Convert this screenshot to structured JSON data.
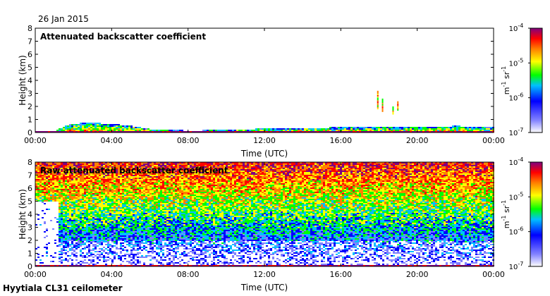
{
  "date_label": "26 Jan 2015",
  "footer_label": "Hyytiala CL31 ceilometer",
  "chart_data": [
    {
      "type": "heatmap",
      "title": "Attenuated backscatter coefficient",
      "xlabel": "Time (UTC)",
      "ylabel": "Height (km)",
      "x_ticks": [
        "00:00",
        "04:00",
        "08:00",
        "12:00",
        "16:00",
        "20:00",
        "00:00"
      ],
      "y_ticks": [
        "0",
        "1",
        "2",
        "3",
        "4",
        "5",
        "6",
        "7",
        "8"
      ],
      "xlim_hours": [
        0,
        24
      ],
      "ylim_km": [
        0,
        8
      ],
      "colorbar": {
        "scale": "log",
        "range": [
          1e-07,
          0.0001
        ],
        "tick_labels": [
          {
            "base": "10",
            "exp": "-4"
          },
          {
            "base": "10",
            "exp": "-5"
          },
          {
            "base": "10",
            "exp": "-6"
          },
          {
            "base": "10",
            "exp": "-7"
          }
        ],
        "unit": {
          "m": "m",
          "m_exp": "-1",
          "sr": "sr",
          "sr_exp": "-1"
        }
      },
      "features": {
        "boundary_layer_top_km": [
          [
            0,
            0.15
          ],
          [
            1,
            0.2
          ],
          [
            1.5,
            0.55
          ],
          [
            2,
            0.75
          ],
          [
            3,
            0.78
          ],
          [
            4,
            0.72
          ],
          [
            5,
            0.55
          ],
          [
            6,
            0.3
          ],
          [
            8,
            0.2
          ],
          [
            10,
            0.25
          ],
          [
            12,
            0.35
          ],
          [
            14,
            0.4
          ],
          [
            16,
            0.45
          ],
          [
            18,
            0.5
          ],
          [
            20,
            0.45
          ],
          [
            22,
            0.55
          ],
          [
            24,
            0.45
          ]
        ],
        "elevated_echoes": [
          {
            "time_h": 17.9,
            "base_km": 1.8,
            "top_km": 3.2
          },
          {
            "time_h": 18.15,
            "base_km": 1.6,
            "top_km": 2.6
          },
          {
            "time_h": 18.7,
            "base_km": 1.4,
            "top_km": 2.0
          },
          {
            "time_h": 18.95,
            "base_km": 1.7,
            "top_km": 2.4
          }
        ]
      }
    },
    {
      "type": "heatmap",
      "title": "Raw attenuated backscatter coefficient",
      "xlabel": "Time (UTC)",
      "ylabel": "Height (km)",
      "x_ticks": [
        "00:00",
        "04:00",
        "08:00",
        "12:00",
        "16:00",
        "20:00",
        "00:00"
      ],
      "y_ticks": [
        "0",
        "1",
        "2",
        "3",
        "4",
        "5",
        "6",
        "7",
        "8"
      ],
      "xlim_hours": [
        0,
        24
      ],
      "ylim_km": [
        0,
        8
      ],
      "colorbar": {
        "scale": "log",
        "range": [
          1e-07,
          0.0001
        ],
        "tick_labels": [
          {
            "base": "10",
            "exp": "-4"
          },
          {
            "base": "10",
            "exp": "-5"
          },
          {
            "base": "10",
            "exp": "-6"
          },
          {
            "base": "10",
            "exp": "-7"
          }
        ],
        "unit": {
          "m": "m",
          "m_exp": "-1",
          "sr": "sr",
          "sr_exp": "-1"
        }
      },
      "features": {
        "noise_increases_with_height": true,
        "clean_region_hours": [
          0,
          1.2
        ],
        "clean_region_top_km": 5.0
      }
    }
  ]
}
